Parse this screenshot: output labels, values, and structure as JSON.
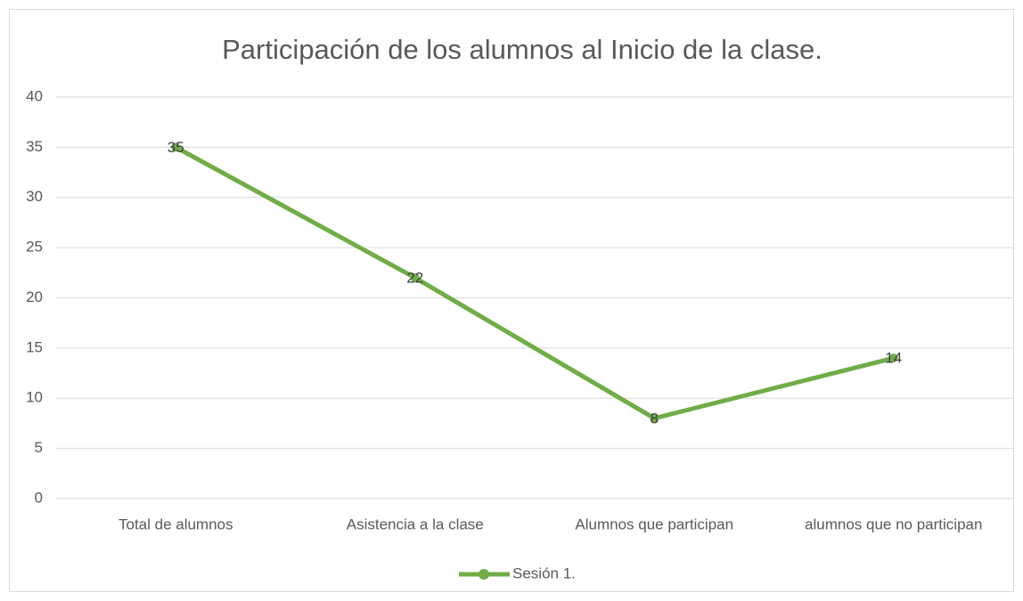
{
  "chart_data": {
    "type": "line",
    "title": "Participación de los alumnos al Inicio de la clase.",
    "categories": [
      "Total de alumnos",
      "Asistencia a la clase",
      "Alumnos que participan",
      "alumnos que no participan"
    ],
    "series": [
      {
        "name": "Sesión 1.",
        "color": "#70ad47",
        "values": [
          35,
          22,
          8,
          14
        ]
      }
    ],
    "ylim": [
      0,
      40
    ],
    "yticks": [
      0,
      5,
      10,
      15,
      20,
      25,
      30,
      35,
      40
    ],
    "grid": true,
    "legend": "bottom",
    "data_labels": true
  }
}
